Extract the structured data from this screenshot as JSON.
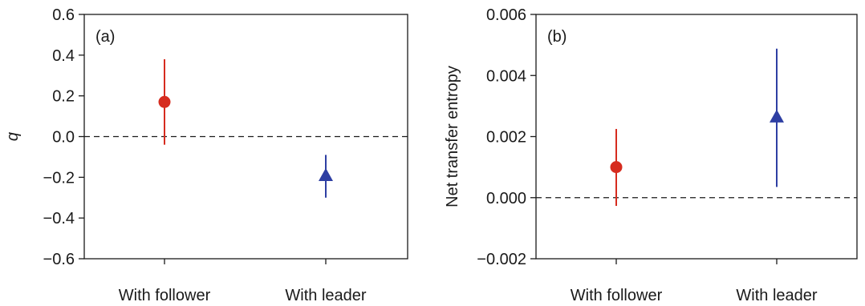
{
  "chart_data": [
    {
      "type": "scatter",
      "panel_label": "(a)",
      "ylabel": "q",
      "ylim": [
        -0.6,
        0.6
      ],
      "yticks": [
        -0.6,
        -0.4,
        -0.2,
        0.0,
        0.2,
        0.4,
        0.6
      ],
      "ytick_labels": [
        "−0.6",
        "−0.4",
        "−0.2",
        "0.0",
        "0.2",
        "0.4",
        "0.6"
      ],
      "categories": [
        "With follower",
        "With leader"
      ],
      "reference_line": 0,
      "grid": false,
      "points": [
        {
          "category": "With follower",
          "value": 0.17,
          "err_low": -0.04,
          "err_high": 0.38,
          "marker": "circle",
          "color": "#d62c1f"
        },
        {
          "category": "With leader",
          "value": -0.19,
          "err_low": -0.3,
          "err_high": -0.09,
          "marker": "triangle",
          "color": "#2e3fa3"
        }
      ]
    },
    {
      "type": "scatter",
      "panel_label": "(b)",
      "ylabel": "Net transfer entropy",
      "ylim": [
        -0.002,
        0.006
      ],
      "yticks": [
        -0.002,
        0.0,
        0.002,
        0.004,
        0.006
      ],
      "ytick_labels": [
        "−0.002",
        "0.000",
        "0.002",
        "0.004",
        "0.006"
      ],
      "categories": [
        "With follower",
        "With leader"
      ],
      "reference_line": 0,
      "grid": false,
      "points": [
        {
          "category": "With follower",
          "value": 0.001,
          "err_low": -0.00027,
          "err_high": 0.00225,
          "marker": "circle",
          "color": "#d62c1f"
        },
        {
          "category": "With leader",
          "value": 0.00265,
          "err_low": 0.00035,
          "err_high": 0.00488,
          "marker": "triangle",
          "color": "#2e3fa3"
        }
      ]
    }
  ]
}
